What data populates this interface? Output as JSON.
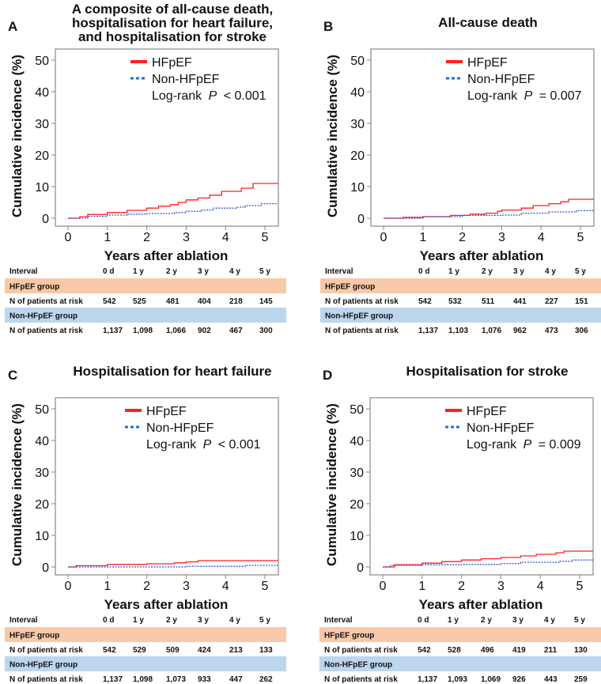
{
  "chart_data": [
    {
      "type": "line",
      "panel": "A",
      "title": [
        "A composite of all-cause death,",
        "hospitalisation for heart failure,",
        "and hospitalisation for stroke"
      ],
      "xlabel": "Years after ablation",
      "ylabel": "Cumulative incidence (%)",
      "xlim": [
        0,
        5.33
      ],
      "ylim": [
        0,
        50
      ],
      "xticks": [
        "0",
        "1",
        "2",
        "3",
        "4",
        "5"
      ],
      "yticks": [
        "0",
        "10",
        "20",
        "30",
        "40",
        "50"
      ],
      "legend": {
        "placement": "top-center",
        "entries": [
          "HFpEF",
          "Non-HFpEF"
        ],
        "stat_prefix": "Log-rank ",
        "stat_p": "P",
        "stat_value": " < 0.001"
      },
      "series": [
        {
          "name": "HFpEF",
          "color": "#ff2020",
          "style": "solid",
          "steps": [
            [
              0,
              0
            ],
            [
              0.3,
              0.5
            ],
            [
              0.5,
              1.2
            ],
            [
              1,
              1.8
            ],
            [
              1.5,
              2.5
            ],
            [
              2,
              3.2
            ],
            [
              2.3,
              3.8
            ],
            [
              2.6,
              4.3
            ],
            [
              2.8,
              5
            ],
            [
              3,
              5.8
            ],
            [
              3.3,
              6.4
            ],
            [
              3.6,
              7.3
            ],
            [
              3.9,
              8.5
            ],
            [
              4.4,
              9.5
            ],
            [
              4.7,
              11
            ],
            [
              5.33,
              11
            ]
          ]
        },
        {
          "name": "Non-HFpEF",
          "color": "#3355cc",
          "style": "dotted",
          "steps": [
            [
              0,
              0
            ],
            [
              0.5,
              0.6
            ],
            [
              1,
              1
            ],
            [
              1.5,
              1.3
            ],
            [
              2,
              1.5
            ],
            [
              2.7,
              1.8
            ],
            [
              3,
              2.2
            ],
            [
              3.4,
              2.6
            ],
            [
              3.7,
              3.2
            ],
            [
              4.3,
              3.5
            ],
            [
              4.5,
              4.0
            ],
            [
              4.9,
              4.6
            ],
            [
              5.33,
              4.6
            ]
          ]
        }
      ],
      "risk_table": {
        "header": [
          "Interval",
          "0 d",
          "1 y",
          "2 y",
          "3 y",
          "4 y",
          "5 y"
        ],
        "groups": [
          {
            "name": "HFpEF group",
            "row_label": "N of patients at risk",
            "values": [
              "542",
              "525",
              "481",
              "404",
              "218",
              "145"
            ]
          },
          {
            "name": "Non-HFpEF group",
            "row_label": "N of patients at risk",
            "values": [
              "1,137",
              "1,098",
              "1,066",
              "902",
              "467",
              "300"
            ]
          }
        ]
      }
    },
    {
      "type": "line",
      "panel": "B",
      "title": [
        "All-cause death"
      ],
      "xlabel": "Years after ablation",
      "ylabel": "Cumulative incidence (%)",
      "xlim": [
        0,
        5.33
      ],
      "ylim": [
        0,
        50
      ],
      "xticks": [
        "0",
        "1",
        "2",
        "3",
        "4",
        "5"
      ],
      "yticks": [
        "0",
        "10",
        "20",
        "30",
        "40",
        "50"
      ],
      "legend": {
        "placement": "top-center",
        "entries": [
          "HFpEF",
          "Non-HFpEF"
        ],
        "stat_prefix": "Log-rank ",
        "stat_p": "P",
        "stat_value": " = 0.007"
      },
      "series": [
        {
          "name": "HFpEF",
          "color": "#ff2020",
          "style": "solid",
          "steps": [
            [
              0,
              0
            ],
            [
              0.5,
              0.3
            ],
            [
              1,
              0.5
            ],
            [
              1.7,
              0.9
            ],
            [
              2.2,
              1.3
            ],
            [
              2.6,
              1.6
            ],
            [
              2.9,
              2.2
            ],
            [
              3.0,
              2.6
            ],
            [
              3.5,
              3.2
            ],
            [
              3.8,
              4
            ],
            [
              4.2,
              4.6
            ],
            [
              4.5,
              5.2
            ],
            [
              4.7,
              6
            ],
            [
              5.33,
              6
            ]
          ]
        },
        {
          "name": "Non-HFpEF",
          "color": "#3355cc",
          "style": "dotted",
          "steps": [
            [
              0,
              0
            ],
            [
              1,
              0.5
            ],
            [
              2,
              0.9
            ],
            [
              3,
              1.0
            ],
            [
              3.5,
              1.6
            ],
            [
              4.2,
              2.0
            ],
            [
              4.9,
              2.4
            ],
            [
              5.33,
              2.4
            ]
          ]
        }
      ],
      "risk_table": {
        "header": [
          "Interval",
          "0 d",
          "1 y",
          "2 y",
          "3 y",
          "4 y",
          "5 y"
        ],
        "groups": [
          {
            "name": "HFpEF group",
            "row_label": "N of patients at risk",
            "values": [
              "542",
              "532",
              "511",
              "441",
              "227",
              "151"
            ]
          },
          {
            "name": "Non-HFpEF group",
            "row_label": "N of patients at risk",
            "values": [
              "1,137",
              "1,103",
              "1,076",
              "962",
              "473",
              "306"
            ]
          }
        ]
      }
    },
    {
      "type": "line",
      "panel": "C",
      "title": [
        "Hospitalisation for heart failure"
      ],
      "xlabel": "Years after ablation",
      "ylabel": "Cumulative incidence (%)",
      "xlim": [
        0,
        5.33
      ],
      "ylim": [
        0,
        50
      ],
      "xticks": [
        "0",
        "1",
        "2",
        "3",
        "4",
        "5"
      ],
      "yticks": [
        "0",
        "10",
        "20",
        "30",
        "40",
        "50"
      ],
      "legend": {
        "placement": "top-center",
        "entries": [
          "HFpEF",
          "Non-HFpEF"
        ],
        "stat_prefix": "Log-rank ",
        "stat_p": "P",
        "stat_value": " < 0.001"
      },
      "series": [
        {
          "name": "HFpEF",
          "color": "#ff2020",
          "style": "solid",
          "steps": [
            [
              0,
              0
            ],
            [
              0.2,
              0.4
            ],
            [
              1,
              0.8
            ],
            [
              2,
              1.0
            ],
            [
              2.7,
              1.3
            ],
            [
              3,
              1.6
            ],
            [
              3.3,
              2.0
            ],
            [
              5.33,
              2.0
            ]
          ]
        },
        {
          "name": "Non-HFpEF",
          "color": "#3355cc",
          "style": "dotted",
          "steps": [
            [
              0,
              0
            ],
            [
              3,
              0.2
            ],
            [
              4.5,
              0.5
            ],
            [
              5.33,
              0.5
            ]
          ]
        }
      ],
      "risk_table": {
        "header": [
          "Interval",
          "0 d",
          "1 y",
          "2 y",
          "3 y",
          "4 y",
          "5 y"
        ],
        "groups": [
          {
            "name": "HFpEF group",
            "row_label": "N of patients at risk",
            "values": [
              "542",
              "529",
              "509",
              "424",
              "213",
              "133"
            ]
          },
          {
            "name": "Non-HFpEF group",
            "row_label": "N of patients at risk",
            "values": [
              "1,137",
              "1,098",
              "1,073",
              "933",
              "447",
              "262"
            ]
          }
        ]
      }
    },
    {
      "type": "line",
      "panel": "D",
      "title": [
        "Hospitalisation for stroke"
      ],
      "xlabel": "Years after ablation",
      "ylabel": "Cumulative incidence (%)",
      "xlim": [
        0,
        5.33
      ],
      "ylim": [
        0,
        50
      ],
      "xticks": [
        "0",
        "1",
        "2",
        "3",
        "4",
        "5"
      ],
      "yticks": [
        "0",
        "10",
        "20",
        "30",
        "40",
        "50"
      ],
      "legend": {
        "placement": "top-center",
        "entries": [
          "HFpEF",
          "Non-HFpEF"
        ],
        "stat_prefix": "Log-rank ",
        "stat_p": "P",
        "stat_value": " = 0.009"
      },
      "series": [
        {
          "name": "HFpEF",
          "color": "#ff2020",
          "style": "solid",
          "steps": [
            [
              0,
              0
            ],
            [
              0.3,
              0.7
            ],
            [
              1,
              1.2
            ],
            [
              1.5,
              1.7
            ],
            [
              2,
              2.2
            ],
            [
              2.5,
              2.6
            ],
            [
              3,
              3.0
            ],
            [
              3.5,
              3.5
            ],
            [
              3.9,
              4.0
            ],
            [
              4.4,
              4.5
            ],
            [
              4.6,
              5.0
            ],
            [
              5.33,
              5.0
            ]
          ]
        },
        {
          "name": "Non-HFpEF",
          "color": "#3355cc",
          "style": "dotted",
          "steps": [
            [
              0,
              0
            ],
            [
              0.2,
              0.5
            ],
            [
              1,
              0.7
            ],
            [
              2,
              0.8
            ],
            [
              3,
              1.1
            ],
            [
              3.5,
              1.5
            ],
            [
              4.5,
              1.8
            ],
            [
              4.8,
              2.2
            ],
            [
              5.33,
              2.2
            ]
          ]
        }
      ],
      "risk_table": {
        "header": [
          "Interval",
          "0 d",
          "1 y",
          "2 y",
          "3 y",
          "4 y",
          "5 y"
        ],
        "groups": [
          {
            "name": "HFpEF group",
            "row_label": "N of patients at risk",
            "values": [
              "542",
              "528",
              "496",
              "419",
              "211",
              "130"
            ]
          },
          {
            "name": "Non-HFpEF group",
            "row_label": "N of patients at risk",
            "values": [
              "1,137",
              "1,093",
              "1,069",
              "926",
              "443",
              "259"
            ]
          }
        ]
      }
    }
  ],
  "colors": {
    "hfpef_band": "#f8c9a8",
    "non_hfpef_band": "#bcd6ee",
    "legend_red": "#ff2020",
    "legend_blue": "#1f6fd0",
    "axis": "#888888"
  }
}
